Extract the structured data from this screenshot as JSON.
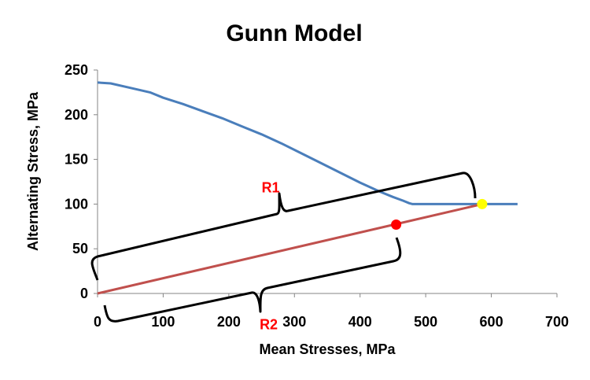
{
  "chart_data": {
    "type": "line",
    "title": "Gunn Model",
    "xlabel": "Mean Stresses, MPa",
    "ylabel": "Alternating Stress, MPa",
    "xlim": [
      0,
      700
    ],
    "ylim": [
      0,
      250
    ],
    "xticks": [
      "0",
      "100",
      "200",
      "300",
      "400",
      "500",
      "600",
      "700"
    ],
    "yticks": [
      "0",
      "50",
      "100",
      "150",
      "200",
      "250"
    ],
    "grid": false,
    "legend": "none",
    "series": [
      {
        "color": "#4a7ebb",
        "x": [
          0,
          20,
          50,
          80,
          100,
          130,
          160,
          190,
          220,
          250,
          280,
          310,
          340,
          370,
          400,
          430,
          450,
          465,
          475,
          480,
          490,
          500,
          550,
          586,
          600,
          640
        ],
        "y": [
          236,
          235,
          230,
          225,
          219,
          212,
          204,
          196,
          187,
          178,
          168,
          157,
          146,
          135,
          124,
          114,
          108,
          104,
          101,
          100,
          100,
          100,
          100,
          100,
          100,
          100
        ]
      },
      {
        "color": "#c0504d",
        "x": [
          0,
          586
        ],
        "y": [
          0,
          100
        ]
      }
    ],
    "points": [
      {
        "x": 455,
        "y": 77,
        "color": "#ff0000"
      },
      {
        "x": 586,
        "y": 100,
        "color": "#ffff00"
      }
    ],
    "annotations": [
      {
        "text": "R1",
        "x": 250,
        "y": 113,
        "color": "#ff0000"
      },
      {
        "text": "R2",
        "x": 247,
        "y": -40,
        "color": "#ff0000"
      }
    ]
  }
}
